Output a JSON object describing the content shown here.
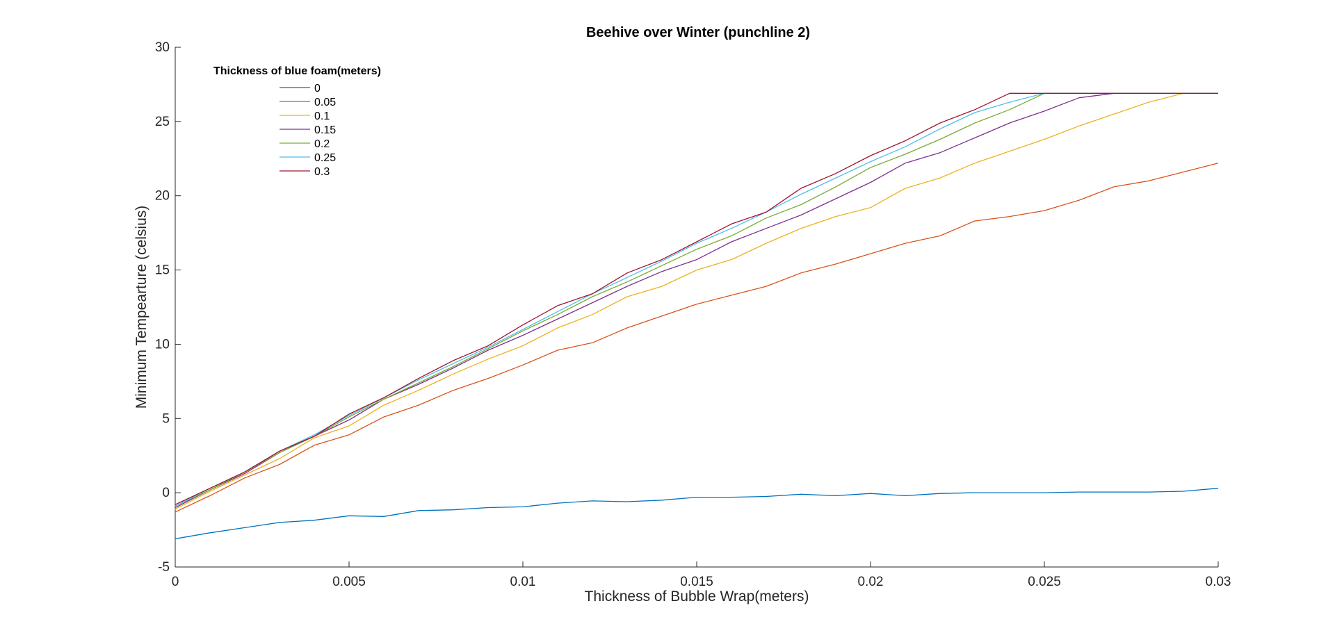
{
  "chart_data": {
    "type": "line",
    "title": "Beehive over Winter (punchline 2)",
    "xlabel": "Thickness of Bubble Wrap(meters)",
    "ylabel": "Minimum Tempearture (celsius)",
    "xlim": [
      0,
      0.03
    ],
    "ylim": [
      -5,
      30
    ],
    "xticks": [
      "0",
      "0.005",
      "0.01",
      "0.015",
      "0.02",
      "0.025",
      "0.03"
    ],
    "yticks": [
      "-5",
      "0",
      "5",
      "10",
      "15",
      "20",
      "25",
      "30"
    ],
    "grid": false,
    "legend": {
      "title": "Thickness of blue foam(meters)",
      "position": "top-left"
    },
    "x": [
      0,
      0.001,
      0.002,
      0.003,
      0.004,
      0.005,
      0.006,
      0.007,
      0.008,
      0.009,
      0.01,
      0.011,
      0.012,
      0.013,
      0.014,
      0.015,
      0.016,
      0.017,
      0.018,
      0.019,
      0.02,
      0.021,
      0.022,
      0.023,
      0.024,
      0.025,
      0.026,
      0.027,
      0.028,
      0.029,
      0.03
    ],
    "series": [
      {
        "name": "0",
        "color": "#0072BD",
        "values": [
          -3.1,
          -2.7,
          -2.35,
          -2.0,
          -1.85,
          -1.55,
          -1.6,
          -1.2,
          -1.15,
          -1.0,
          -0.95,
          -0.7,
          -0.55,
          -0.6,
          -0.5,
          -0.3,
          -0.3,
          -0.25,
          -0.1,
          -0.2,
          -0.05,
          -0.2,
          -0.05,
          0.0,
          0.0,
          0.0,
          0.05,
          0.05,
          0.05,
          0.1,
          0.3
        ]
      },
      {
        "name": "0.05",
        "color": "#D95319",
        "values": [
          -1.3,
          -0.2,
          1.0,
          1.9,
          3.2,
          3.9,
          5.1,
          5.9,
          6.9,
          7.7,
          8.6,
          9.6,
          10.1,
          11.1,
          11.9,
          12.7,
          13.3,
          13.9,
          14.8,
          15.4,
          16.1,
          16.8,
          17.3,
          18.3,
          18.6,
          19.0,
          19.7,
          20.6,
          21.0,
          21.6,
          22.2
        ]
      },
      {
        "name": "0.1",
        "color": "#EDB120",
        "values": [
          -1.1,
          0.1,
          1.2,
          2.3,
          3.7,
          4.5,
          5.9,
          6.9,
          8.0,
          9.0,
          9.9,
          11.1,
          12.0,
          13.2,
          13.9,
          15.0,
          15.7,
          16.8,
          17.8,
          18.6,
          19.2,
          20.5,
          21.2,
          22.2,
          23.0,
          23.8,
          24.7,
          25.5,
          26.3,
          26.9,
          26.9
        ]
      },
      {
        "name": "0.15",
        "color": "#7E2F8E",
        "values": [
          -1.0,
          0.2,
          1.3,
          2.7,
          3.8,
          4.9,
          6.3,
          7.3,
          8.4,
          9.6,
          10.6,
          11.7,
          12.8,
          13.9,
          14.9,
          15.7,
          16.9,
          17.8,
          18.7,
          19.8,
          20.9,
          22.2,
          22.9,
          23.9,
          24.9,
          25.7,
          26.6,
          26.9,
          26.9,
          26.9,
          26.9
        ]
      },
      {
        "name": "0.2",
        "color": "#77AC30",
        "values": [
          -0.9,
          0.2,
          1.4,
          2.7,
          3.8,
          5.1,
          6.3,
          7.4,
          8.5,
          9.7,
          10.9,
          12.0,
          13.2,
          14.2,
          15.3,
          16.4,
          17.3,
          18.5,
          19.4,
          20.6,
          21.9,
          22.8,
          23.8,
          24.9,
          25.8,
          26.9,
          26.9,
          26.9,
          26.9,
          26.9,
          26.9
        ]
      },
      {
        "name": "0.25",
        "color": "#4DBEEE",
        "values": [
          -0.9,
          0.3,
          1.4,
          2.8,
          3.9,
          5.2,
          6.4,
          7.6,
          8.7,
          9.8,
          11.0,
          12.2,
          13.4,
          14.5,
          15.6,
          16.8,
          17.8,
          18.9,
          20.1,
          21.2,
          22.3,
          23.3,
          24.5,
          25.6,
          26.3,
          26.9,
          26.9,
          26.9,
          26.9,
          26.9,
          26.9
        ]
      },
      {
        "name": "0.3",
        "color": "#A2142F",
        "values": [
          -0.8,
          0.3,
          1.4,
          2.8,
          3.8,
          5.3,
          6.4,
          7.7,
          8.9,
          9.9,
          11.3,
          12.6,
          13.4,
          14.8,
          15.7,
          16.9,
          18.1,
          18.9,
          20.5,
          21.5,
          22.7,
          23.7,
          24.9,
          25.8,
          26.9,
          26.9,
          26.9,
          26.9,
          26.9,
          26.9,
          26.9
        ]
      }
    ]
  }
}
